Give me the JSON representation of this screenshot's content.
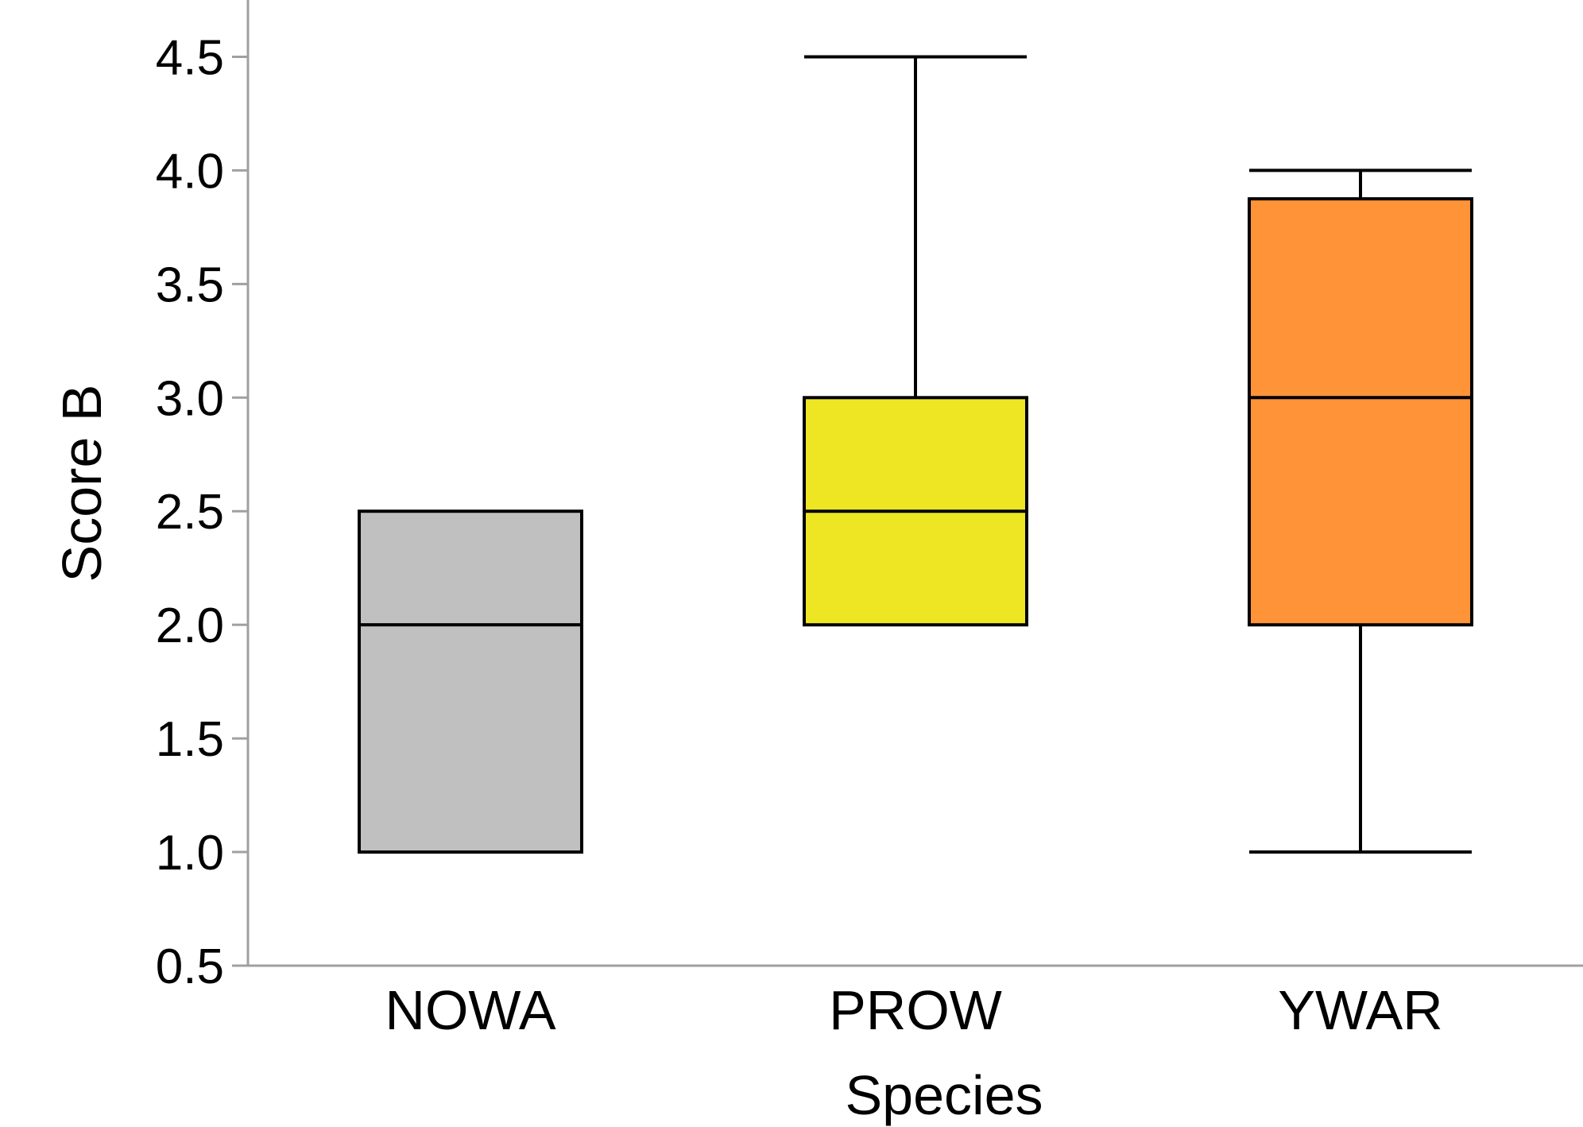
{
  "chart_data": {
    "type": "boxplot",
    "title": "",
    "xlabel": "Species",
    "ylabel": "Score B",
    "ylim": [
      0.5,
      4.75
    ],
    "yticks": [
      "0.5",
      "1.0",
      "1.5",
      "2.0",
      "2.5",
      "3.0",
      "3.5",
      "4.0",
      "4.5"
    ],
    "categories": [
      "NOWA",
      "PROW",
      "YWAR"
    ],
    "boxes": [
      {
        "category": "NOWA",
        "whisker_low": 1.0,
        "q1": 1.0,
        "median": 2.0,
        "q3": 2.5,
        "whisker_high": 2.5,
        "color": "#c0c0c0"
      },
      {
        "category": "PROW",
        "whisker_low": 2.0,
        "q1": 2.0,
        "median": 2.5,
        "q3": 3.0,
        "whisker_high": 4.5,
        "color": "#eee622"
      },
      {
        "category": "YWAR",
        "whisker_low": 1.0,
        "q1": 2.0,
        "median": 3.0,
        "q3": 3.875,
        "whisker_high": 4.0,
        "color": "#ff9337"
      }
    ],
    "grid": false,
    "legend": "none",
    "axis_color": "#a0a0a0"
  }
}
